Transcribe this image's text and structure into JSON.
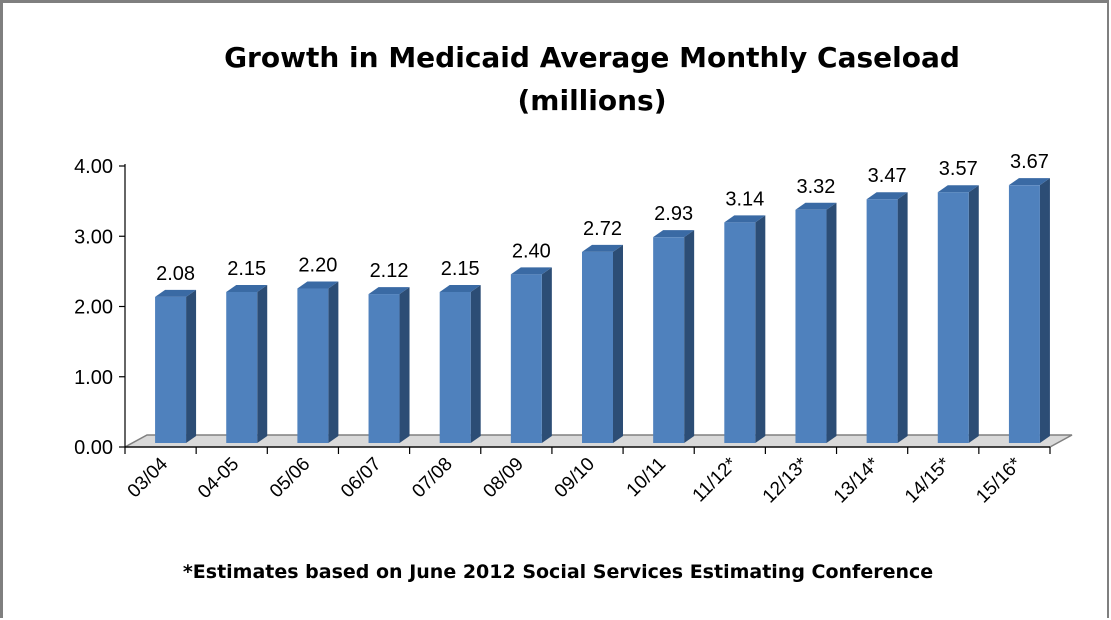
{
  "chart_data": {
    "type": "bar",
    "title": "Growth in Medicaid Average Monthly Caseload",
    "subtitle": "(millions)",
    "categories": [
      "03/04",
      "04-05",
      "05/06",
      "06/07",
      "07/08",
      "08/09",
      "09/10",
      "10/11",
      "11/12*",
      "12/13*",
      "13/14*",
      "14/15*",
      "15/16*"
    ],
    "series": [
      {
        "values": [
          2.08,
          2.15,
          2.2,
          2.12,
          2.15,
          2.4,
          2.72,
          2.93,
          3.14,
          3.32,
          3.47,
          3.57,
          3.67
        ]
      }
    ],
    "data_labels": [
      "2.08",
      "2.15",
      "2.20",
      "2.12",
      "2.15",
      "2.40",
      "2.72",
      "2.93",
      "3.14",
      "3.32",
      "3.47",
      "3.57",
      "3.67"
    ],
    "ylim": [
      0,
      4
    ],
    "yticks": [
      "0.00",
      "1.00",
      "2.00",
      "3.00",
      "4.00"
    ],
    "xlabel": "",
    "ylabel": "",
    "grid": false,
    "legend": "none",
    "style": "3d-column",
    "colors": {
      "bar_front": "#4f81bd",
      "bar_side": "#2c4d75",
      "bar_top": "#3a6aa4",
      "floor": "#d9d9d9",
      "axis": "#000000"
    }
  },
  "footnote": "*Estimates based on June 2012 Social Services Estimating Conference"
}
